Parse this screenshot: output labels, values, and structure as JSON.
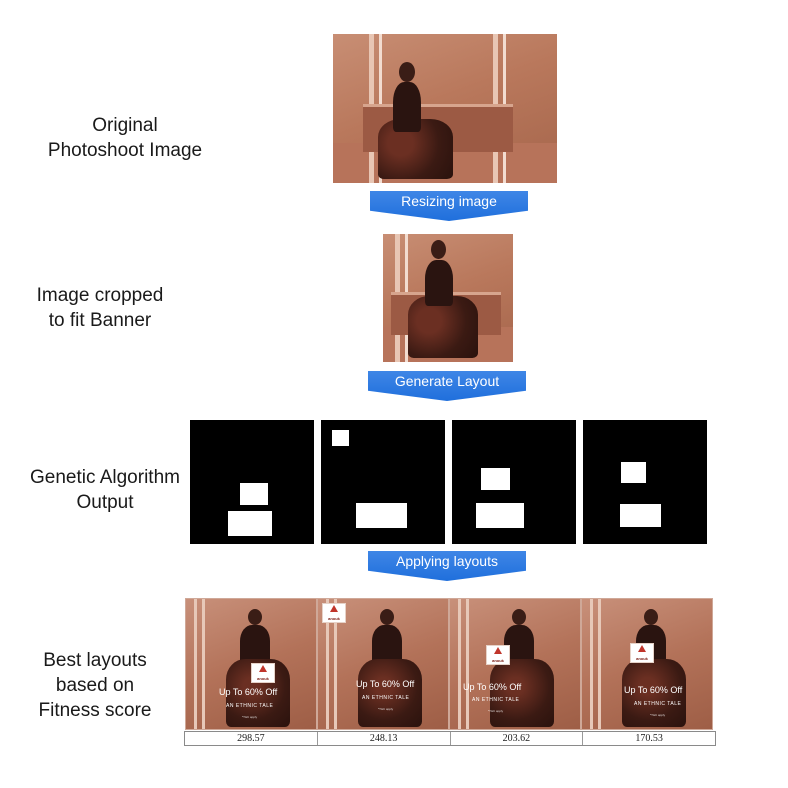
{
  "stages": {
    "original_label": "Original\nPhotoshoot Image",
    "cropped_label": "Image cropped\n to fit Banner",
    "ga_label": "Genetic Algorithm\nOutput",
    "best_label": "Best layouts\nbased on\nFitness score"
  },
  "arrows": {
    "resize": "Resizing image",
    "generate": "Generate Layout",
    "apply": "Applying layouts"
  },
  "banner_text": {
    "offer": "Up To 60% Off",
    "subtitle": "AN ETHNIC TALE",
    "logo": "anouk",
    "fine_print": "*T&C apply"
  },
  "fitness_scores": [
    "298.57",
    "248.13",
    "203.62",
    "170.53"
  ],
  "colors": {
    "arrow": "#2a78e4",
    "photo_tint": "#b9785c",
    "ga_background": "#000000",
    "ga_box": "#ffffff"
  }
}
